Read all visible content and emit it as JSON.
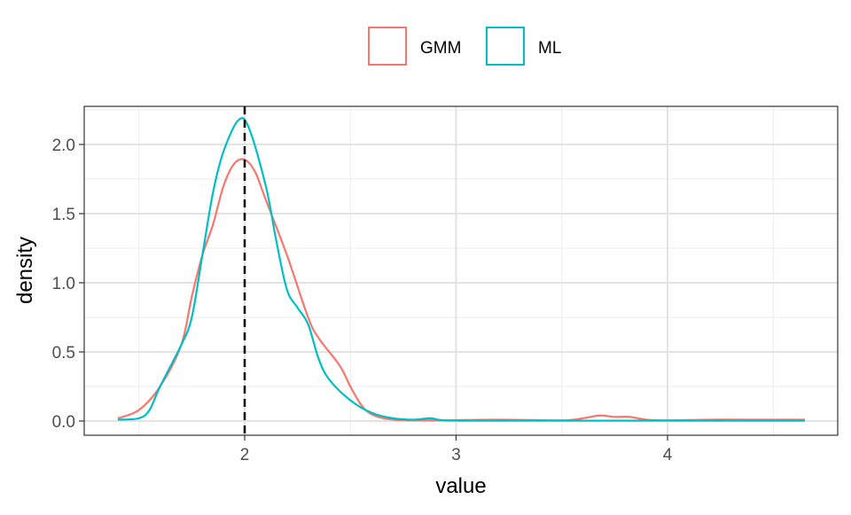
{
  "chart_data": {
    "type": "line",
    "title": "",
    "xlabel": "value",
    "ylabel": "density",
    "xlim": [
      1.33,
      4.89
    ],
    "ylim": [
      -0.1,
      2.28
    ],
    "x_ticks": [
      2,
      3,
      4
    ],
    "x_tick_labels": [
      "2",
      "3",
      "4"
    ],
    "y_ticks": [
      0,
      0.5,
      1,
      1.5,
      2
    ],
    "y_tick_labels": [
      "0.0",
      "0.5",
      "1.0",
      "1.5",
      "2.0"
    ],
    "grid": true,
    "legend_position": "top",
    "reference_line": {
      "x": 2,
      "style": "dashed",
      "color": "#000000"
    },
    "series": [
      {
        "name": "GMM",
        "color": "#F8766D",
        "x": [
          1.4,
          1.5,
          1.6,
          1.7,
          1.75,
          1.8,
          1.85,
          1.9,
          1.95,
          2.0,
          2.05,
          2.1,
          2.2,
          2.3,
          2.35,
          2.45,
          2.5,
          2.55,
          2.6,
          2.7,
          2.9,
          3.2,
          3.5,
          3.6,
          3.68,
          3.75,
          3.82,
          3.9,
          4.0,
          4.2,
          4.4,
          4.65
        ],
        "y": [
          0.02,
          0.08,
          0.25,
          0.55,
          0.9,
          1.2,
          1.42,
          1.7,
          1.86,
          1.89,
          1.8,
          1.6,
          1.2,
          0.75,
          0.6,
          0.4,
          0.25,
          0.12,
          0.05,
          0.01,
          0.005,
          0.01,
          0.005,
          0.02,
          0.04,
          0.03,
          0.03,
          0.01,
          0.005,
          0.01,
          0.01,
          0.01
        ]
      },
      {
        "name": "ML",
        "color": "#00BFC4",
        "x": [
          1.4,
          1.5,
          1.55,
          1.6,
          1.7,
          1.75,
          1.8,
          1.85,
          1.9,
          1.97,
          2.02,
          2.1,
          2.15,
          2.2,
          2.25,
          2.3,
          2.35,
          2.4,
          2.5,
          2.6,
          2.7,
          2.8,
          2.88,
          2.95,
          3.2,
          4.0,
          4.65
        ],
        "y": [
          0.01,
          0.02,
          0.08,
          0.25,
          0.55,
          0.75,
          1.2,
          1.65,
          1.95,
          2.175,
          2.12,
          1.7,
          1.3,
          0.95,
          0.82,
          0.7,
          0.45,
          0.3,
          0.15,
          0.06,
          0.02,
          0.01,
          0.02,
          0.005,
          0.003,
          0.003,
          0.003
        ]
      }
    ]
  }
}
